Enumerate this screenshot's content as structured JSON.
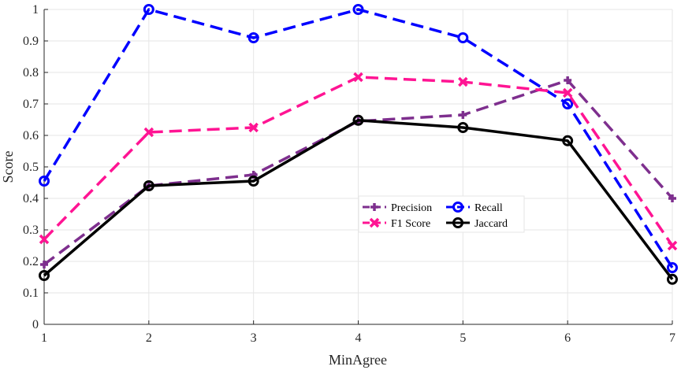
{
  "chart_data": {
    "type": "line",
    "title": "",
    "xlabel": "MinAgree",
    "ylabel": "Score",
    "x": [
      1,
      2,
      3,
      4,
      5,
      6,
      7
    ],
    "xlim": [
      1,
      7
    ],
    "ylim": [
      0,
      1
    ],
    "x_ticks": [
      "1",
      "2",
      "3",
      "4",
      "5",
      "6",
      "7"
    ],
    "y_ticks": [
      "0",
      "0.1",
      "0.2",
      "0.3",
      "0.4",
      "0.5",
      "0.6",
      "0.7",
      "0.8",
      "0.9",
      "1"
    ],
    "grid": true,
    "legend_position": "center-right",
    "series": [
      {
        "name": "Precision",
        "color": "#7e2f8e",
        "line": "dashed",
        "marker": "plus",
        "values": [
          0.19,
          0.44,
          0.475,
          0.645,
          0.665,
          0.775,
          0.4
        ]
      },
      {
        "name": "Recall",
        "color": "#0000ff",
        "line": "dashed",
        "marker": "circle",
        "values": [
          0.455,
          1.0,
          0.91,
          1.0,
          0.91,
          0.7,
          0.18
        ]
      },
      {
        "name": "F1 Score",
        "color": "#ff1493",
        "line": "dashed",
        "marker": "cross",
        "values": [
          0.27,
          0.61,
          0.625,
          0.785,
          0.77,
          0.735,
          0.25
        ]
      },
      {
        "name": "Jaccard",
        "color": "#000000",
        "line": "solid",
        "marker": "circle",
        "values": [
          0.155,
          0.44,
          0.455,
          0.648,
          0.625,
          0.583,
          0.143
        ]
      }
    ]
  }
}
